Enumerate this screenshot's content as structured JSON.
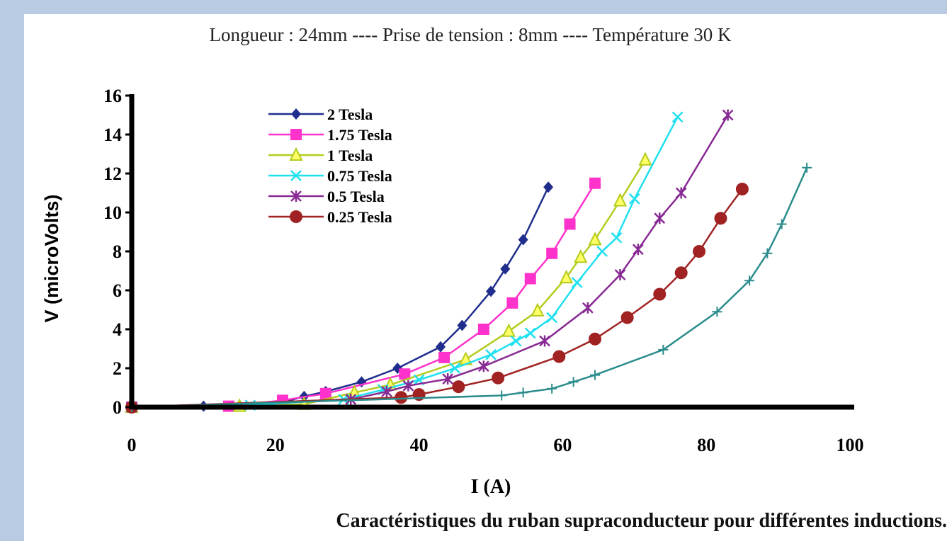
{
  "header": {
    "title": "Longueur : 24mm ---- Prise de tension : 8mm ---- Température 30 K"
  },
  "caption": "Caractéristiques du ruban supraconducteur pour différentes inductions.",
  "chart_data": {
    "type": "line",
    "xlabel": "I (A)",
    "ylabel": "V (microVolts)",
    "xlim": [
      0,
      100
    ],
    "ylim": [
      0,
      16
    ],
    "xticks": [
      0,
      20,
      40,
      60,
      80,
      100
    ],
    "yticks": [
      0,
      2,
      4,
      6,
      8,
      10,
      12,
      14,
      16
    ],
    "grid": false,
    "legend_position": "top-left",
    "series": [
      {
        "name": "2 Tesla",
        "color": "#1f2d8c",
        "marker": "diamond",
        "x": [
          0,
          10,
          21,
          24,
          27,
          32,
          37,
          43,
          46,
          50,
          52,
          54.5,
          58
        ],
        "y": [
          0,
          0.05,
          0.25,
          0.55,
          0.8,
          1.3,
          2.0,
          3.1,
          4.2,
          5.95,
          7.1,
          8.6,
          11.3
        ]
      },
      {
        "name": "1.75 Tesla",
        "color": "#ff33cc",
        "marker": "square",
        "x": [
          0,
          13.5,
          21,
          27,
          38,
          43.5,
          49,
          53,
          55.5,
          58.5,
          61,
          64.5
        ],
        "y": [
          0,
          0.05,
          0.35,
          0.7,
          1.7,
          2.55,
          4.0,
          5.35,
          6.6,
          7.9,
          9.4,
          11.5
        ]
      },
      {
        "name": "1 Tesla",
        "color": "#b5cc1f",
        "marker": "triangle",
        "x": [
          0,
          15,
          24,
          31,
          36,
          46.5,
          52.5,
          56.5,
          60.5,
          62.5,
          64.5,
          68,
          71.5
        ],
        "y": [
          0,
          0.05,
          0.15,
          0.75,
          1.15,
          2.45,
          3.9,
          4.95,
          6.65,
          7.7,
          8.6,
          10.6,
          12.7
        ]
      },
      {
        "name": "0.75 Tesla",
        "color": "#1fe0ef",
        "marker": "x",
        "x": [
          0,
          16.5,
          29.5,
          35,
          40,
          45,
          50,
          53.5,
          55.5,
          58.5,
          62,
          65.5,
          67.5,
          70,
          76
        ],
        "y": [
          0,
          0.1,
          0.4,
          0.9,
          1.4,
          2.0,
          2.7,
          3.4,
          3.8,
          4.6,
          6.4,
          8.0,
          8.7,
          10.7,
          14.9
        ]
      },
      {
        "name": "0.5 Tesla",
        "color": "#882a94",
        "marker": "asterisk",
        "x": [
          0,
          30.5,
          35.5,
          38.5,
          44,
          49,
          57.5,
          63.5,
          68,
          70.5,
          73.5,
          76.5,
          83
        ],
        "y": [
          0,
          0.4,
          0.8,
          1.1,
          1.45,
          2.1,
          3.4,
          5.1,
          6.8,
          8.1,
          9.7,
          11.0,
          15.0
        ]
      },
      {
        "name": "0.25 Tesla",
        "color": "#a12222",
        "marker": "circle",
        "x": [
          0,
          37.5,
          40,
          45.5,
          51,
          59.5,
          64.5,
          69,
          73.5,
          76.5,
          79,
          82,
          85
        ],
        "y": [
          0,
          0.5,
          0.65,
          1.05,
          1.5,
          2.6,
          3.5,
          4.6,
          5.8,
          6.9,
          8.0,
          9.7,
          11.2
        ]
      },
      {
        "color": "#2a8c8c",
        "marker": "plus",
        "x": [
          0,
          51.5,
          54.5,
          58.5,
          61.5,
          64.5,
          74,
          81.5,
          86,
          88.5,
          90.5,
          94
        ],
        "y": [
          0,
          0.6,
          0.75,
          0.95,
          1.3,
          1.65,
          2.95,
          4.9,
          6.5,
          7.9,
          9.4,
          12.3
        ]
      }
    ]
  }
}
